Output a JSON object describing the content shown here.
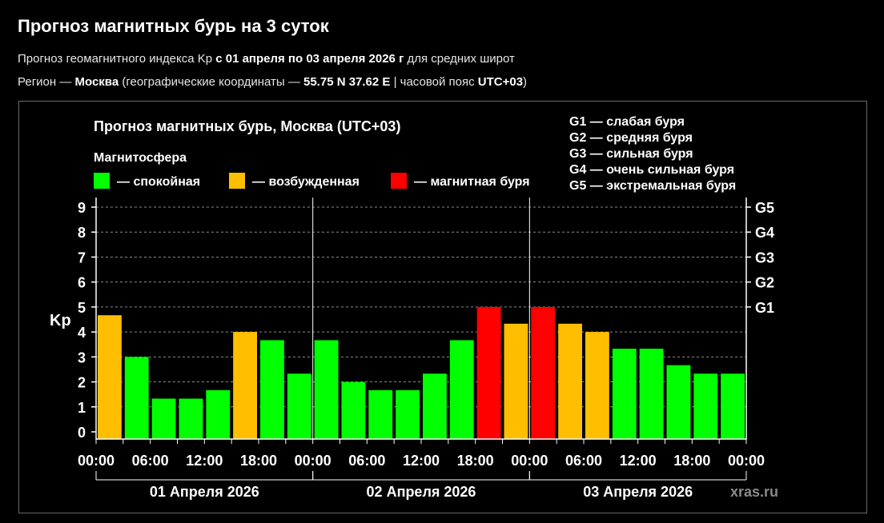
{
  "header": {
    "title": "Прогноз магнитных бурь на 3 суток",
    "sub1": {
      "pre": "Прогноз геомагнитного индекса Kp ",
      "bold": "с 01 апреля по 03 апреля 2026 г",
      "post": " для средних широт"
    },
    "sub2": {
      "pre": "Регион — ",
      "city": "Москва",
      "mid": " (географические координаты — ",
      "coords": "55.75 N 37.62 E",
      "mid2": " | часовой пояс ",
      "tz": "UTC+03",
      "post": ")"
    }
  },
  "chart_data": {
    "type": "bar",
    "title": "Прогноз магнитных бурь, Москва (UTC+03)",
    "legend": {
      "heading": "Магнитосфера",
      "placement": "top",
      "items": [
        {
          "color": "#00ff00",
          "label": "— спокойная"
        },
        {
          "color": "#ffbf00",
          "label": "— возбужденная"
        },
        {
          "color": "#ff0000",
          "label": "— магнитная буря"
        }
      ]
    },
    "storm_legend": [
      "G1 — слабая буря",
      "G2 — средняя буря",
      "G3 — сильная буря",
      "G4 — очень сильная буря",
      "G5 — экстремальная буря"
    ],
    "ylabel": "Kp",
    "ylim": [
      0,
      9
    ],
    "yticks": [
      "0",
      "1",
      "2",
      "3",
      "4",
      "5",
      "6",
      "7",
      "8",
      "9"
    ],
    "right_ticks": [
      {
        "value": 5,
        "label": "G1"
      },
      {
        "value": 6,
        "label": "G2"
      },
      {
        "value": 7,
        "label": "G3"
      },
      {
        "value": 8,
        "label": "G4"
      },
      {
        "value": 9,
        "label": "G5"
      }
    ],
    "grid": true,
    "xtick_labels": [
      "00:00",
      "06:00",
      "12:00",
      "18:00",
      "00:00",
      "06:00",
      "12:00",
      "18:00",
      "00:00",
      "06:00",
      "12:00",
      "18:00",
      "00:00"
    ],
    "days": [
      "01 Апреля 2026",
      "02 Апреля 2026",
      "03 Апреля 2026"
    ],
    "values": [
      4.67,
      3.0,
      1.33,
      1.33,
      1.67,
      4.0,
      3.67,
      2.33,
      3.67,
      2.0,
      1.67,
      1.67,
      2.33,
      3.67,
      5.0,
      4.33,
      5.0,
      4.33,
      4.0,
      3.33,
      3.33,
      2.67,
      2.33,
      2.33
    ],
    "levels": [
      "moderate",
      "quiet",
      "quiet",
      "quiet",
      "quiet",
      "moderate",
      "quiet",
      "quiet",
      "quiet",
      "quiet",
      "quiet",
      "quiet",
      "quiet",
      "quiet",
      "storm",
      "moderate",
      "storm",
      "moderate",
      "moderate",
      "quiet",
      "quiet",
      "quiet",
      "quiet",
      "quiet"
    ],
    "colors": {
      "quiet": "#00ff00",
      "moderate": "#ffbf00",
      "storm": "#ff0000"
    },
    "watermark": "xras.ru"
  }
}
